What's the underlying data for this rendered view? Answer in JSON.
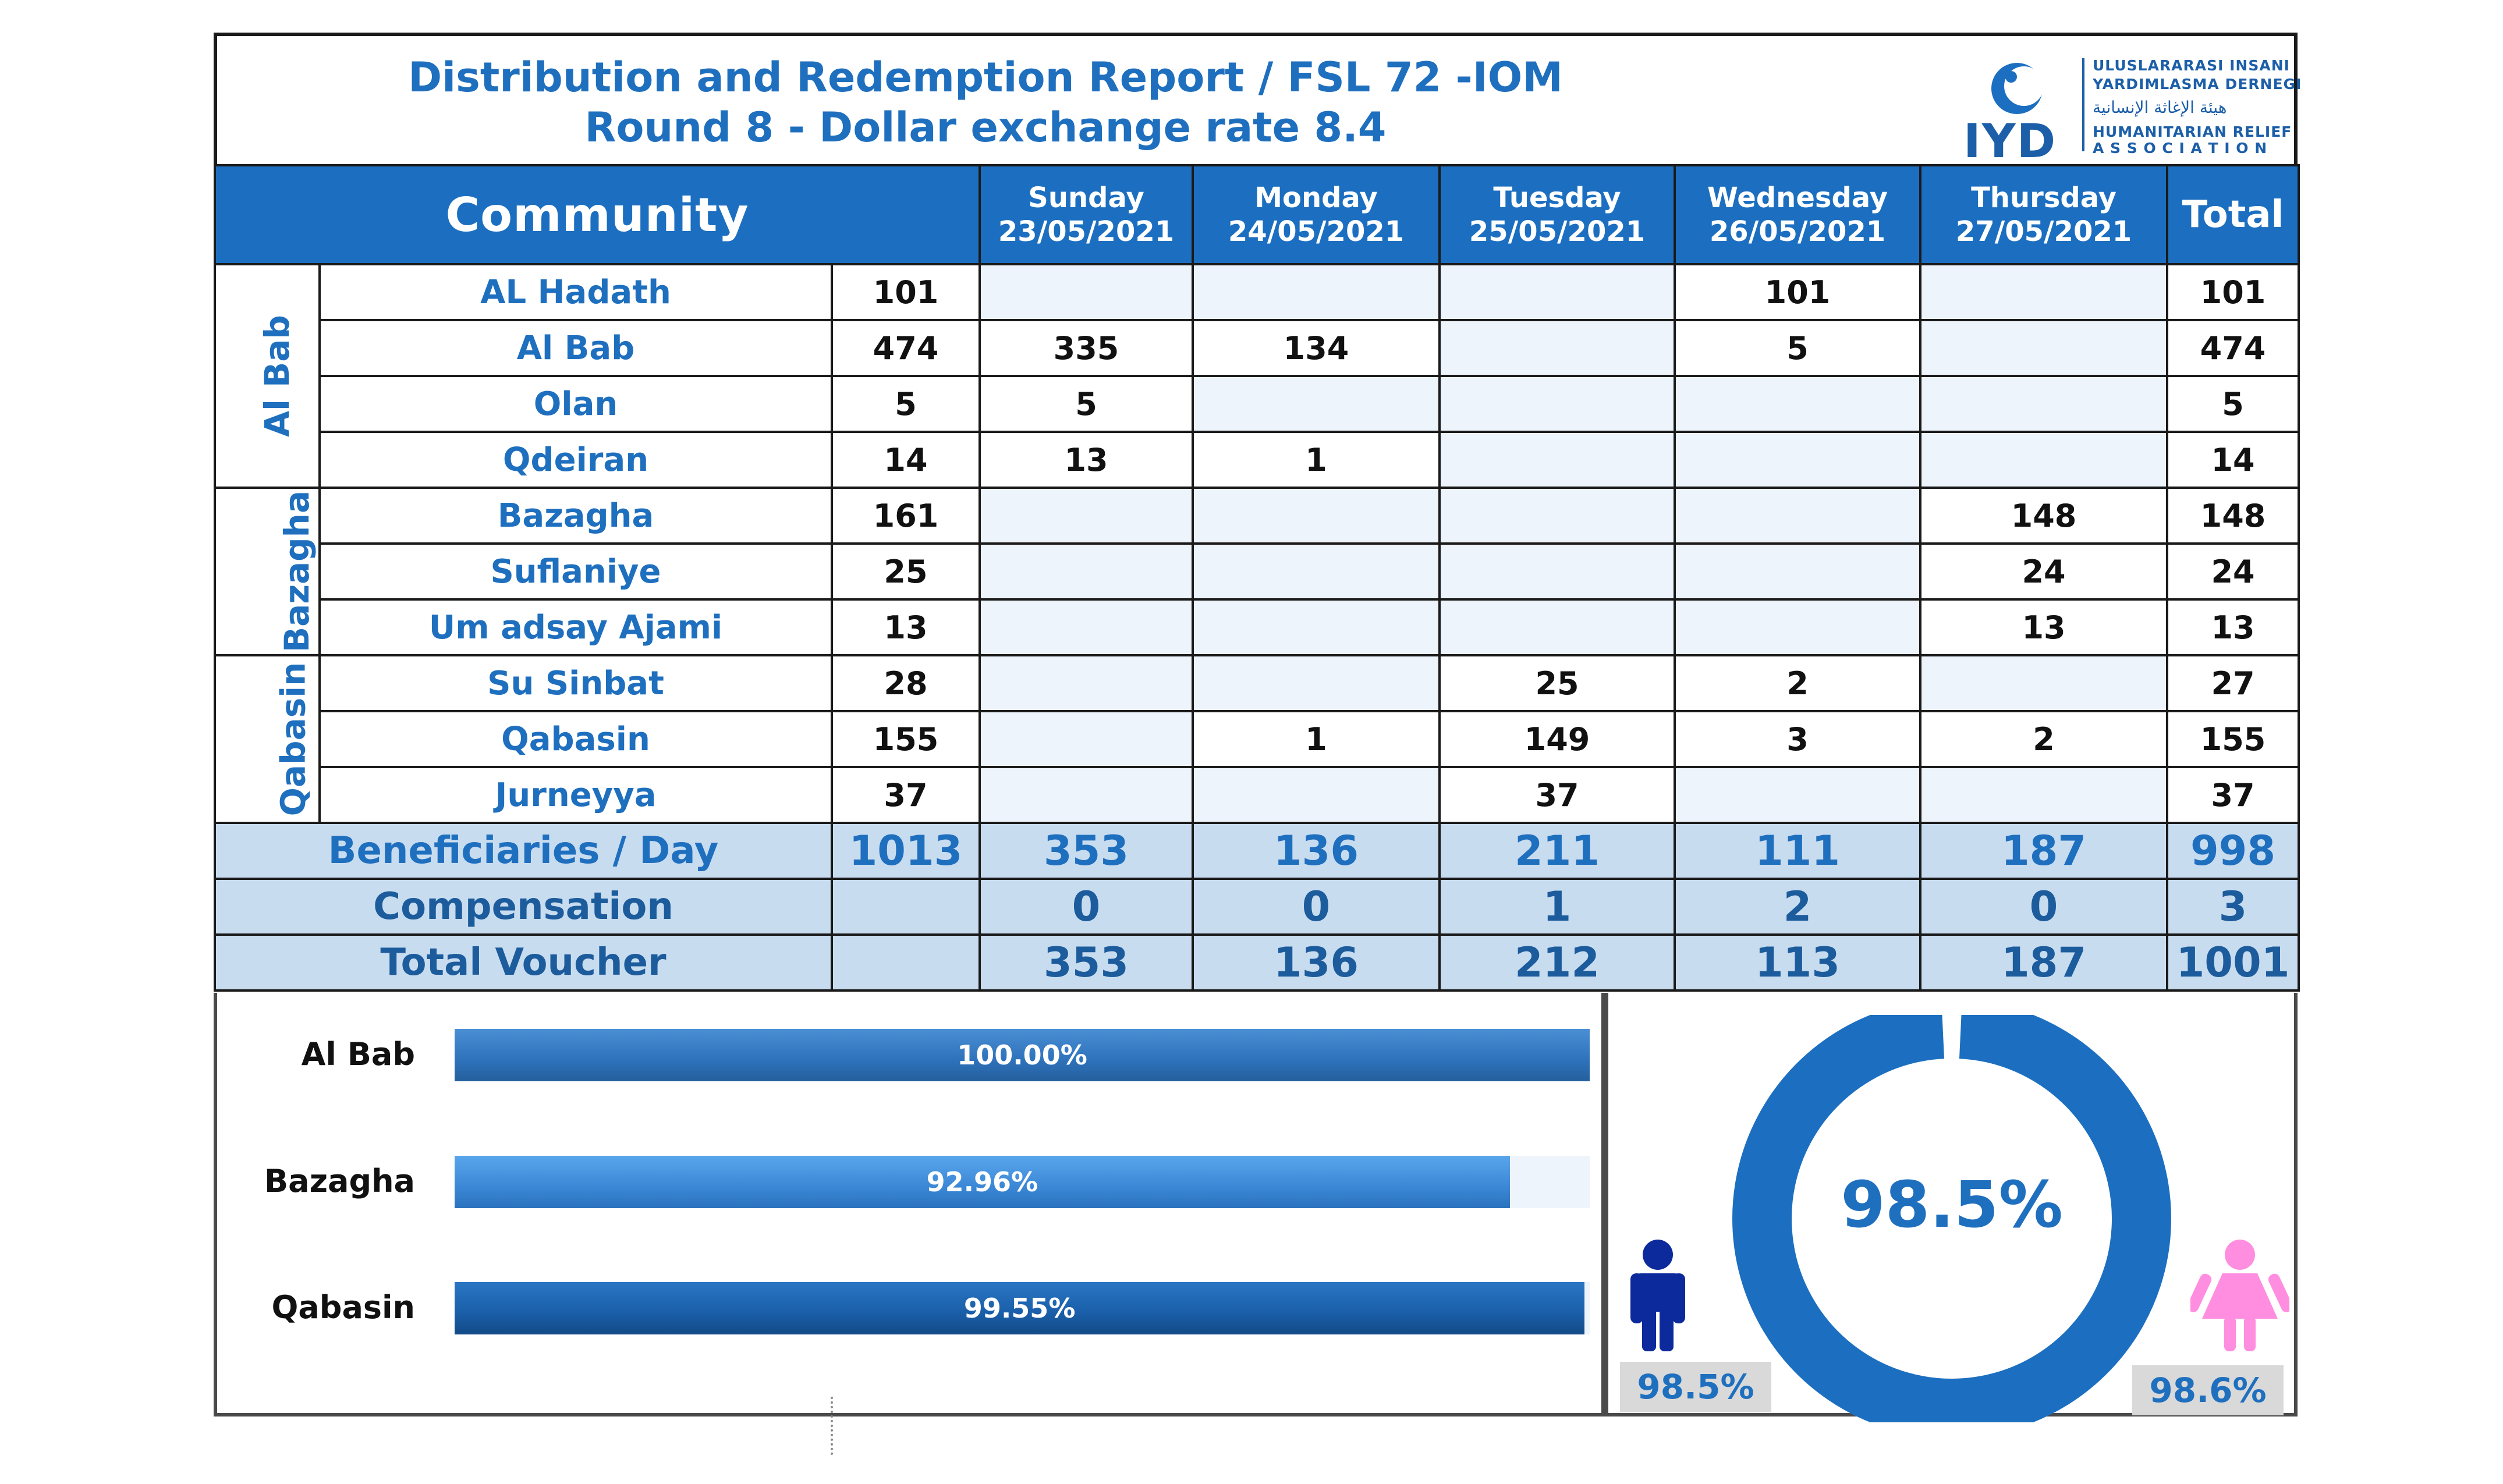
{
  "header": {
    "title_line1": "Distribution and Redemption Report / FSL 72 -IOM",
    "title_line2": "Round 8 - Dollar exchange rate 8.4",
    "logo": {
      "abbr": "IYD",
      "line1": "ULUSLARARASI INSANI",
      "line2": "YARDIMLASMA DERNEGI",
      "arabic": "هيئة الإغاثة الإنسانية",
      "line4": "HUMANITARIAN RELIEF",
      "line5": "A S S O C I A T I O N"
    }
  },
  "table": {
    "community_header": "Community",
    "days": [
      {
        "day": "Sunday",
        "date": "23/05/2021"
      },
      {
        "day": "Monday",
        "date": "24/05/2021"
      },
      {
        "day": "Tuesday",
        "date": "25/05/2021"
      },
      {
        "day": "Wednesday",
        "date": "26/05/2021"
      },
      {
        "day": "Thursday",
        "date": "27/05/2021"
      }
    ],
    "total_header": "Total",
    "groups": [
      {
        "name": "Al Bab",
        "rows": [
          {
            "community": "AL Hadath",
            "planned": "101",
            "sun": "",
            "mon": "",
            "tue": "",
            "wed": "101",
            "thu": "",
            "total": "101"
          },
          {
            "community": "Al Bab",
            "planned": "474",
            "sun": "335",
            "mon": "134",
            "tue": "",
            "wed": "5",
            "thu": "",
            "total": "474"
          },
          {
            "community": "Olan",
            "planned": "5",
            "sun": "5",
            "mon": "",
            "tue": "",
            "wed": "",
            "thu": "",
            "total": "5"
          },
          {
            "community": "Qdeiran",
            "planned": "14",
            "sun": "13",
            "mon": "1",
            "tue": "",
            "wed": "",
            "thu": "",
            "total": "14"
          }
        ]
      },
      {
        "name": "Bazagha",
        "rows": [
          {
            "community": "Bazagha",
            "planned": "161",
            "sun": "",
            "mon": "",
            "tue": "",
            "wed": "",
            "thu": "148",
            "total": "148"
          },
          {
            "community": "Suflaniye",
            "planned": "25",
            "sun": "",
            "mon": "",
            "tue": "",
            "wed": "",
            "thu": "24",
            "total": "24"
          },
          {
            "community": "Um adsay Ajami",
            "planned": "13",
            "sun": "",
            "mon": "",
            "tue": "",
            "wed": "",
            "thu": "13",
            "total": "13"
          }
        ]
      },
      {
        "name": "Qabasin",
        "rows": [
          {
            "community": "Su Sinbat",
            "planned": "28",
            "sun": "",
            "mon": "",
            "tue": "25",
            "wed": "2",
            "thu": "",
            "total": "27"
          },
          {
            "community": "Qabasin",
            "planned": "155",
            "sun": "",
            "mon": "1",
            "tue": "149",
            "wed": "3",
            "thu": "2",
            "total": "155"
          },
          {
            "community": "Jurneyya",
            "planned": "37",
            "sun": "",
            "mon": "",
            "tue": "37",
            "wed": "",
            "thu": "",
            "total": "37"
          }
        ]
      }
    ],
    "summary": [
      {
        "label": "Beneficiaries / Day",
        "planned": "1013",
        "sun": "353",
        "mon": "136",
        "tue": "211",
        "wed": "111",
        "thu": "187",
        "total": "998"
      },
      {
        "label": "Compensation",
        "planned": "",
        "sun": "0",
        "mon": "0",
        "tue": "1",
        "wed": "2",
        "thu": "0",
        "total": "3"
      },
      {
        "label": "Total Voucher",
        "planned": "",
        "sun": "353",
        "mon": "136",
        "tue": "212",
        "wed": "113",
        "thu": "187",
        "total": "1001"
      }
    ]
  },
  "chart_data": [
    {
      "type": "bar",
      "orientation": "horizontal",
      "categories": [
        "Al Bab",
        "Bazagha",
        "Qabasin"
      ],
      "values": [
        100.0,
        92.96,
        99.55
      ],
      "labels": [
        "100.00%",
        "92.96%",
        "99.55%"
      ],
      "xlim": [
        0,
        100
      ],
      "colors": [
        "#2e72bb",
        "#3b87d6",
        "#1a5ea8"
      ]
    },
    {
      "type": "pie",
      "variant": "donut",
      "center_label": "98.5%",
      "value": 98.5,
      "male_pct": "98.5%",
      "female_pct": "98.6%",
      "colors": {
        "ring": "#1c6fc0",
        "male": "#0d2a9c",
        "female": "#ff8ee0"
      }
    }
  ],
  "colors": {
    "accent": "#1c6fc0",
    "title": "#1f6fbf",
    "summary_bg": "#c8dcf0",
    "empty_cell": "#eef4fb"
  }
}
